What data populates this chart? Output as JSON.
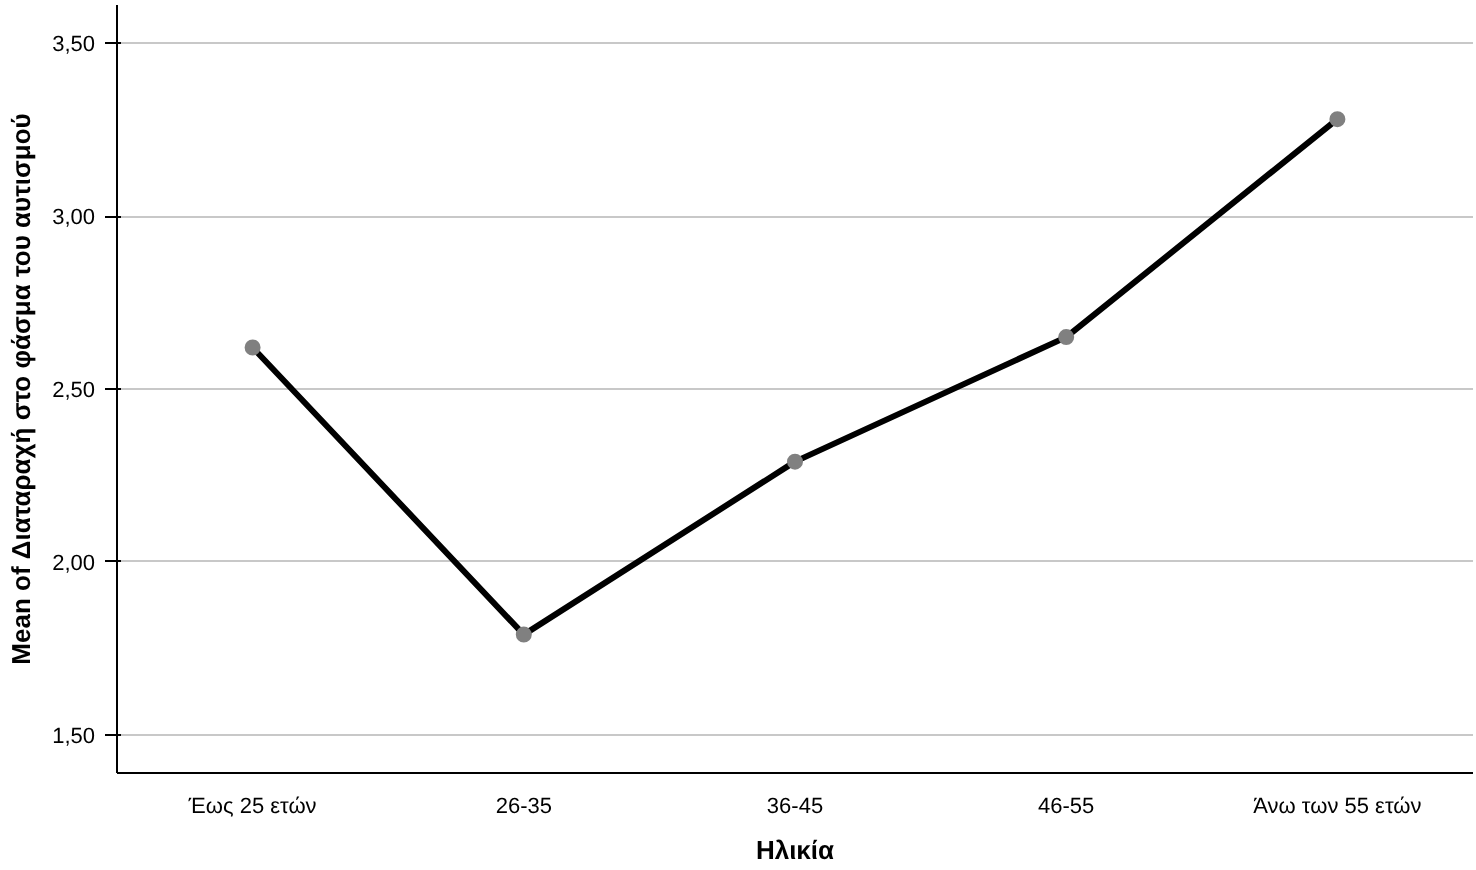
{
  "chart_data": {
    "type": "line",
    "xlabel": "Ηλικία",
    "ylabel": "Mean of Διαταραχή στο φάσμα του αυτισμού",
    "categories": [
      "Έως 25 ετών",
      "26-35",
      "36-45",
      "46-55",
      "Άνω των 55 ετών"
    ],
    "series": [
      {
        "color": "#000000",
        "values": [
          2.62,
          1.79,
          2.29,
          2.65,
          3.28
        ]
      }
    ],
    "ylim": [
      1.39,
      3.61
    ],
    "yticks": [
      {
        "value": 1.5,
        "label": "1,50"
      },
      {
        "value": 2.0,
        "label": "2,00"
      },
      {
        "value": 2.5,
        "label": "2,50"
      },
      {
        "value": 3.0,
        "label": "3,00"
      },
      {
        "value": 3.5,
        "label": "3,50"
      }
    ],
    "grid": "y",
    "marker": "circle",
    "line_style": "solid"
  }
}
